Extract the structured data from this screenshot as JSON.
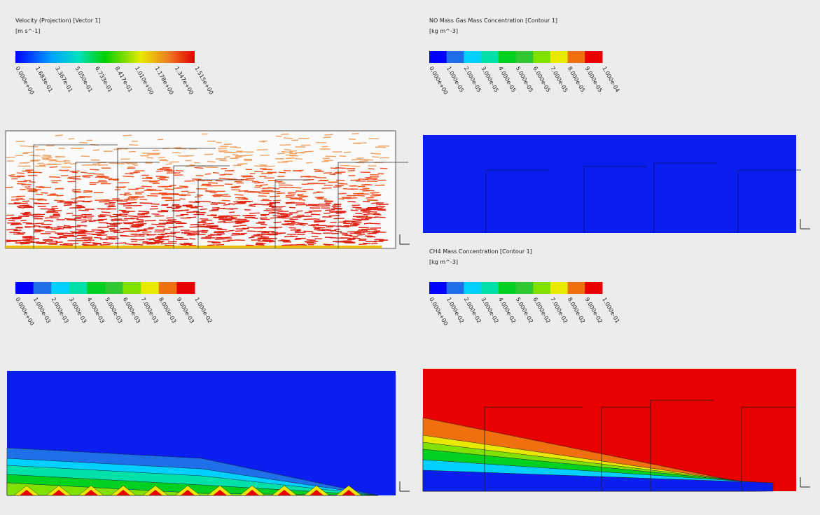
{
  "panels": [
    {
      "title": "Velocity (Projection) [Vector 1]",
      "unit": "[m s^-1]",
      "legend_labels": [
        "0.000e+00",
        "1.683e-01",
        "3.367e-01",
        "5.050e-01",
        "6.733e-01",
        "8.417e-01",
        "1.010e+00",
        "1.178e+00",
        "1.347e+00",
        "1.515e+00"
      ]
    },
    {
      "title": "NO Mass Gas Mass Concentration [Contour 1]",
      "unit": "[kg m^-3]",
      "legend_labels": [
        "0.000e+00",
        "1.000e-05",
        "2.000e-05",
        "3.000e-05",
        "4.000e-05",
        "5.000e-05",
        "6.000e-05",
        "7.000e-05",
        "8.000e-05",
        "9.000e-05",
        "1.000e-04"
      ]
    },
    {
      "legend_labels": [
        "0.000e+00",
        "1.000e-03",
        "2.000e-03",
        "3.000e-03",
        "4.000e-03",
        "5.000e-03",
        "6.000e-03",
        "7.000e-03",
        "8.000e-03",
        "9.000e-03",
        "1.000e-02"
      ]
    },
    {
      "title": "CH4 Mass Concentration [Contour 1]",
      "unit": "[kg m^-3]",
      "legend_labels": [
        "0.000e+00",
        "1.000e-02",
        "2.000e-02",
        "3.000e-02",
        "4.000e-02",
        "5.000e-02",
        "6.000e-02",
        "7.000e-02",
        "8.000e-02",
        "9.000e-02",
        "1.000e-01"
      ]
    }
  ]
}
